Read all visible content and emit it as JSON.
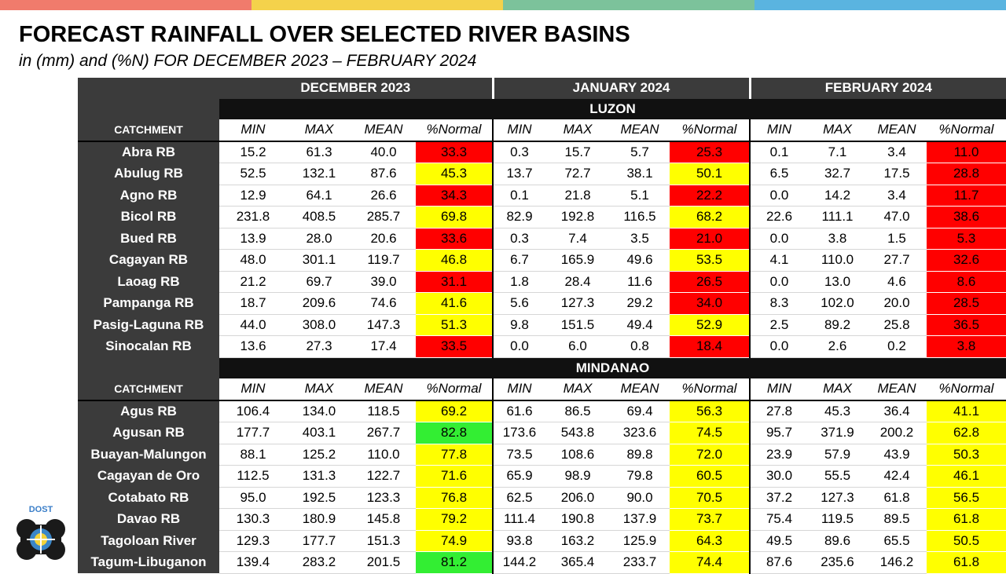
{
  "top_bar_colors": [
    "#f07b6c",
    "#f4d24b",
    "#7cc29b",
    "#5ab4e0"
  ],
  "title": "FORECAST RAINFALL OVER SELECTED RIVER BASINS",
  "subtitle": "in (mm) and (%N) FOR  DECEMBER 2023 – FEBRUARY 2024",
  "months": [
    "DECEMBER 2023",
    "JANUARY 2024",
    "FEBRUARY 2024"
  ],
  "columns": [
    "MIN",
    "MAX",
    "MEAN",
    "%Normal"
  ],
  "catchment_label": "CATCHMENT",
  "logo_text": "DOST",
  "colors": {
    "red": "#ff0000",
    "yellow": "#ffff00",
    "green": "#33ee33",
    "dark": "#3b3b3b",
    "region": "#111111"
  },
  "regions": [
    {
      "name": "LUZON",
      "rows": [
        {
          "name": "Abra RB",
          "values": [
            [
              "15.2",
              "61.3",
              "40.0",
              "33.3"
            ],
            [
              "0.3",
              "15.7",
              "5.7",
              "25.3"
            ],
            [
              "0.1",
              "7.1",
              "3.4",
              "11.0"
            ]
          ],
          "colors": [
            "red",
            "red",
            "red"
          ]
        },
        {
          "name": "Abulug RB",
          "values": [
            [
              "52.5",
              "132.1",
              "87.6",
              "45.3"
            ],
            [
              "13.7",
              "72.7",
              "38.1",
              "50.1"
            ],
            [
              "6.5",
              "32.7",
              "17.5",
              "28.8"
            ]
          ],
          "colors": [
            "yellow",
            "yellow",
            "red"
          ]
        },
        {
          "name": "Agno RB",
          "values": [
            [
              "12.9",
              "64.1",
              "26.6",
              "34.3"
            ],
            [
              "0.1",
              "21.8",
              "5.1",
              "22.2"
            ],
            [
              "0.0",
              "14.2",
              "3.4",
              "11.7"
            ]
          ],
          "colors": [
            "red",
            "red",
            "red"
          ]
        },
        {
          "name": "Bicol RB",
          "values": [
            [
              "231.8",
              "408.5",
              "285.7",
              "69.8"
            ],
            [
              "82.9",
              "192.8",
              "116.5",
              "68.2"
            ],
            [
              "22.6",
              "111.1",
              "47.0",
              "38.6"
            ]
          ],
          "colors": [
            "yellow",
            "yellow",
            "red"
          ]
        },
        {
          "name": "Bued RB",
          "values": [
            [
              "13.9",
              "28.0",
              "20.6",
              "33.6"
            ],
            [
              "0.3",
              "7.4",
              "3.5",
              "21.0"
            ],
            [
              "0.0",
              "3.8",
              "1.5",
              "5.3"
            ]
          ],
          "colors": [
            "red",
            "red",
            "red"
          ]
        },
        {
          "name": "Cagayan RB",
          "values": [
            [
              "48.0",
              "301.1",
              "119.7",
              "46.8"
            ],
            [
              "6.7",
              "165.9",
              "49.6",
              "53.5"
            ],
            [
              "4.1",
              "110.0",
              "27.7",
              "32.6"
            ]
          ],
          "colors": [
            "yellow",
            "yellow",
            "red"
          ]
        },
        {
          "name": "Laoag RB",
          "values": [
            [
              "21.2",
              "69.7",
              "39.0",
              "31.1"
            ],
            [
              "1.8",
              "28.4",
              "11.6",
              "26.5"
            ],
            [
              "0.0",
              "13.0",
              "4.6",
              "8.6"
            ]
          ],
          "colors": [
            "red",
            "red",
            "red"
          ]
        },
        {
          "name": "Pampanga RB",
          "values": [
            [
              "18.7",
              "209.6",
              "74.6",
              "41.6"
            ],
            [
              "5.6",
              "127.3",
              "29.2",
              "34.0"
            ],
            [
              "8.3",
              "102.0",
              "20.0",
              "28.5"
            ]
          ],
          "colors": [
            "yellow",
            "red",
            "red"
          ]
        },
        {
          "name": "Pasig-Laguna RB",
          "values": [
            [
              "44.0",
              "308.0",
              "147.3",
              "51.3"
            ],
            [
              "9.8",
              "151.5",
              "49.4",
              "52.9"
            ],
            [
              "2.5",
              "89.2",
              "25.8",
              "36.5"
            ]
          ],
          "colors": [
            "yellow",
            "yellow",
            "red"
          ]
        },
        {
          "name": "Sinocalan RB",
          "values": [
            [
              "13.6",
              "27.3",
              "17.4",
              "33.5"
            ],
            [
              "0.0",
              "6.0",
              "0.8",
              "18.4"
            ],
            [
              "0.0",
              "2.6",
              "0.2",
              "3.8"
            ]
          ],
          "colors": [
            "red",
            "red",
            "red"
          ]
        }
      ]
    },
    {
      "name": "MINDANAO",
      "rows": [
        {
          "name": "Agus RB",
          "values": [
            [
              "106.4",
              "134.0",
              "118.5",
              "69.2"
            ],
            [
              "61.6",
              "86.5",
              "69.4",
              "56.3"
            ],
            [
              "27.8",
              "45.3",
              "36.4",
              "41.1"
            ]
          ],
          "colors": [
            "yellow",
            "yellow",
            "yellow"
          ]
        },
        {
          "name": "Agusan RB",
          "values": [
            [
              "177.7",
              "403.1",
              "267.7",
              "82.8"
            ],
            [
              "173.6",
              "543.8",
              "323.6",
              "74.5"
            ],
            [
              "95.7",
              "371.9",
              "200.2",
              "62.8"
            ]
          ],
          "colors": [
            "green",
            "yellow",
            "yellow"
          ]
        },
        {
          "name": "Buayan-Malungon",
          "values": [
            [
              "88.1",
              "125.2",
              "110.0",
              "77.8"
            ],
            [
              "73.5",
              "108.6",
              "89.8",
              "72.0"
            ],
            [
              "23.9",
              "57.9",
              "43.9",
              "50.3"
            ]
          ],
          "colors": [
            "yellow",
            "yellow",
            "yellow"
          ]
        },
        {
          "name": "Cagayan de Oro",
          "values": [
            [
              "112.5",
              "131.3",
              "122.7",
              "71.6"
            ],
            [
              "65.9",
              "98.9",
              "79.8",
              "60.5"
            ],
            [
              "30.0",
              "55.5",
              "42.4",
              "46.1"
            ]
          ],
          "colors": [
            "yellow",
            "yellow",
            "yellow"
          ]
        },
        {
          "name": "Cotabato RB",
          "values": [
            [
              "95.0",
              "192.5",
              "123.3",
              "76.8"
            ],
            [
              "62.5",
              "206.0",
              "90.0",
              "70.5"
            ],
            [
              "37.2",
              "127.3",
              "61.8",
              "56.5"
            ]
          ],
          "colors": [
            "yellow",
            "yellow",
            "yellow"
          ]
        },
        {
          "name": "Davao RB",
          "values": [
            [
              "130.3",
              "180.9",
              "145.8",
              "79.2"
            ],
            [
              "111.4",
              "190.8",
              "137.9",
              "73.7"
            ],
            [
              "75.4",
              "119.5",
              "89.5",
              "61.8"
            ]
          ],
          "colors": [
            "yellow",
            "yellow",
            "yellow"
          ]
        },
        {
          "name": "Tagoloan River",
          "values": [
            [
              "129.3",
              "177.7",
              "151.3",
              "74.9"
            ],
            [
              "93.8",
              "163.2",
              "125.9",
              "64.3"
            ],
            [
              "49.5",
              "89.6",
              "65.5",
              "50.5"
            ]
          ],
          "colors": [
            "yellow",
            "yellow",
            "yellow"
          ]
        },
        {
          "name": "Tagum-Libuganon",
          "values": [
            [
              "139.4",
              "283.2",
              "201.5",
              "81.2"
            ],
            [
              "144.2",
              "365.4",
              "233.7",
              "74.4"
            ],
            [
              "87.6",
              "235.6",
              "146.2",
              "61.8"
            ]
          ],
          "colors": [
            "green",
            "yellow",
            "yellow"
          ]
        }
      ]
    }
  ]
}
